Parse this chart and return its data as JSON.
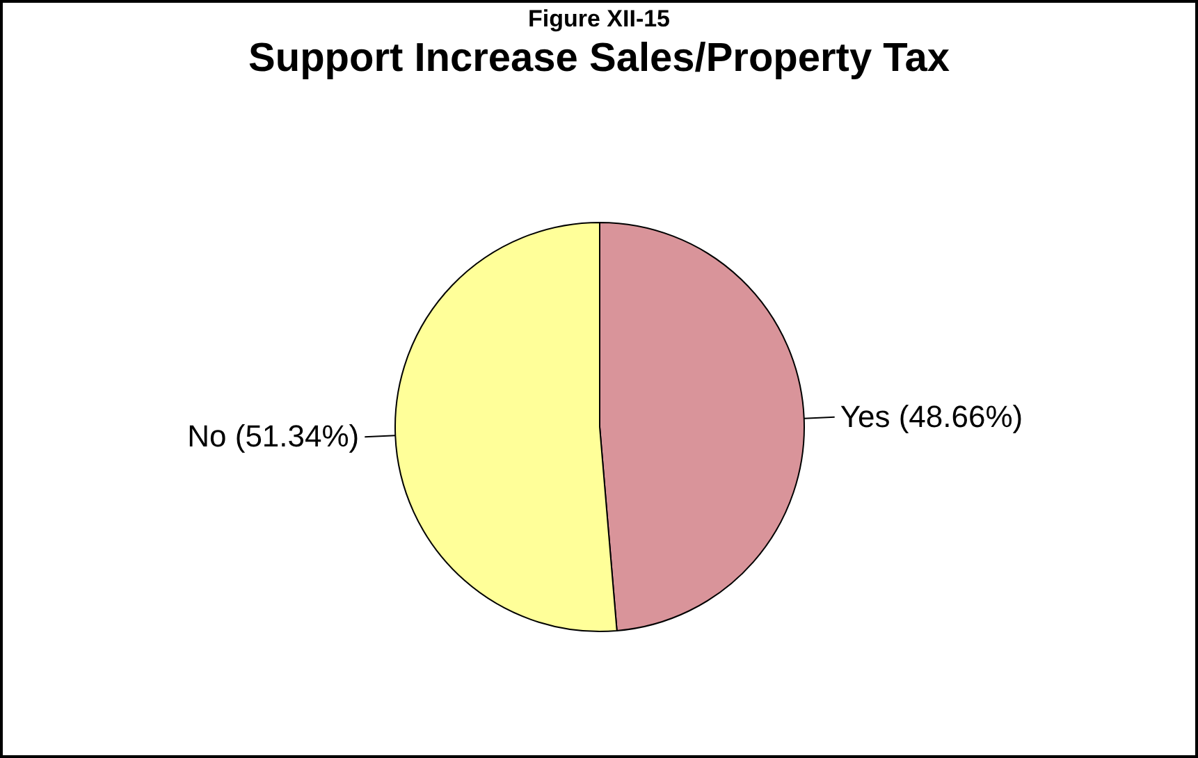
{
  "chart_data": {
    "type": "pie",
    "title": "Support Increase Sales/Property Tax",
    "annotations": [
      "Figure XII-15"
    ],
    "categories": [
      "Yes",
      "No"
    ],
    "values": [
      48.66,
      51.34
    ],
    "value_labels": [
      "(48.66%)",
      "(51.34%)"
    ],
    "colors": [
      "#d9949a",
      "#ffff99"
    ]
  }
}
